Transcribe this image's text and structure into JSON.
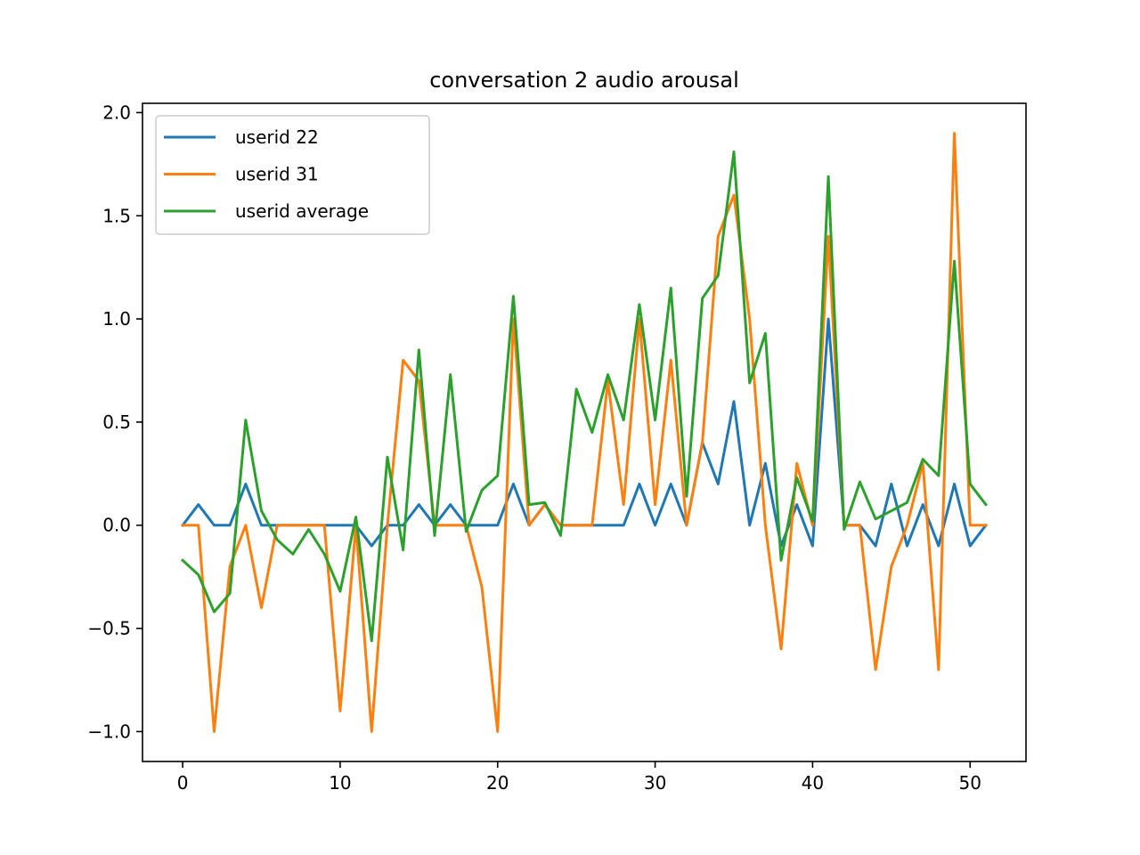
{
  "chart_data": {
    "type": "line",
    "title": "conversation 2 audio arousal",
    "xlabel": "",
    "ylabel": "",
    "xlim": [
      -2.55,
      53.55
    ],
    "ylim": [
      -1.145,
      2.045
    ],
    "xticks": [
      0,
      10,
      20,
      30,
      40,
      50
    ],
    "xtick_labels": [
      "0",
      "10",
      "20",
      "30",
      "40",
      "50"
    ],
    "yticks": [
      -1.0,
      -0.5,
      0.0,
      0.5,
      1.0,
      1.5,
      2.0
    ],
    "ytick_labels": [
      "−1.0",
      "−0.5",
      "0.0",
      "0.5",
      "1.0",
      "1.5",
      "2.0"
    ],
    "grid": false,
    "legend_position": "top-left",
    "series": [
      {
        "name": "userid 22",
        "color": "#1f77b4",
        "x": [
          0,
          1,
          2,
          3,
          4,
          5,
          6,
          7,
          8,
          9,
          10,
          11,
          12,
          13,
          14,
          15,
          16,
          17,
          18,
          19,
          20,
          21,
          22,
          23,
          24,
          25,
          26,
          27,
          28,
          29,
          30,
          31,
          32,
          33,
          34,
          35,
          36,
          37,
          38,
          39,
          40,
          41,
          42,
          43,
          44,
          45,
          46,
          47,
          48,
          49,
          50,
          51
        ],
        "y": [
          0,
          0.1,
          0,
          0,
          0.2,
          0,
          0,
          0,
          0,
          0,
          0,
          0,
          -0.1,
          0,
          0,
          0.1,
          0,
          0.1,
          0,
          0,
          0,
          0.2,
          0,
          0.1,
          0,
          0,
          0,
          0,
          0,
          0.2,
          0,
          0.2,
          0,
          0.4,
          0.2,
          0.6,
          0,
          0.3,
          -0.1,
          0.1,
          -0.1,
          1.0,
          0,
          0,
          -0.1,
          0.2,
          -0.1,
          0.1,
          -0.1,
          0.2,
          -0.1,
          0
        ]
      },
      {
        "name": "userid 31",
        "color": "#ff7f0e",
        "x": [
          0,
          1,
          2,
          3,
          4,
          5,
          6,
          7,
          8,
          9,
          10,
          11,
          12,
          13,
          14,
          15,
          16,
          17,
          18,
          19,
          20,
          21,
          22,
          23,
          24,
          25,
          26,
          27,
          28,
          29,
          30,
          31,
          32,
          33,
          34,
          35,
          36,
          37,
          38,
          39,
          40,
          41,
          42,
          43,
          44,
          45,
          46,
          47,
          48,
          49,
          50,
          51
        ],
        "y": [
          0,
          0,
          -1.0,
          -0.2,
          0,
          -0.4,
          0,
          0,
          0,
          0,
          -0.9,
          0,
          -1.0,
          0,
          0.8,
          0.7,
          0,
          0,
          0,
          -0.3,
          -1.0,
          1.0,
          0,
          0.1,
          0,
          0,
          0,
          0.7,
          0.1,
          1.0,
          0.1,
          0.8,
          0,
          0.4,
          1.4,
          1.6,
          1.0,
          0,
          -0.6,
          0.3,
          0,
          1.4,
          0,
          0,
          -0.7,
          -0.2,
          0,
          0.3,
          -0.7,
          1.9,
          0,
          0
        ]
      },
      {
        "name": "userid average",
        "color": "#2ca02c",
        "x": [
          0,
          1,
          2,
          3,
          4,
          5,
          6,
          7,
          8,
          9,
          10,
          11,
          12,
          13,
          14,
          15,
          16,
          17,
          18,
          19,
          20,
          21,
          22,
          23,
          24,
          25,
          26,
          27,
          28,
          29,
          30,
          31,
          32,
          33,
          34,
          35,
          36,
          37,
          38,
          39,
          40,
          41,
          42,
          43,
          44,
          45,
          46,
          47,
          48,
          49,
          50,
          51
        ],
        "y": [
          -0.17,
          -0.24,
          -0.42,
          -0.33,
          0.51,
          0.07,
          -0.07,
          -0.14,
          -0.02,
          -0.14,
          -0.32,
          0.04,
          -0.56,
          0.33,
          -0.12,
          0.85,
          -0.05,
          0.73,
          -0.03,
          0.17,
          0.24,
          1.11,
          0.1,
          0.11,
          -0.05,
          0.66,
          0.45,
          0.73,
          0.51,
          1.07,
          0.51,
          1.15,
          0.14,
          1.1,
          1.21,
          1.81,
          0.69,
          0.93,
          -0.17,
          0.23,
          0.02,
          1.69,
          -0.02,
          0.21,
          0.03,
          0.07,
          0.11,
          0.32,
          0.24,
          1.28,
          0.2,
          0.1
        ]
      }
    ]
  }
}
